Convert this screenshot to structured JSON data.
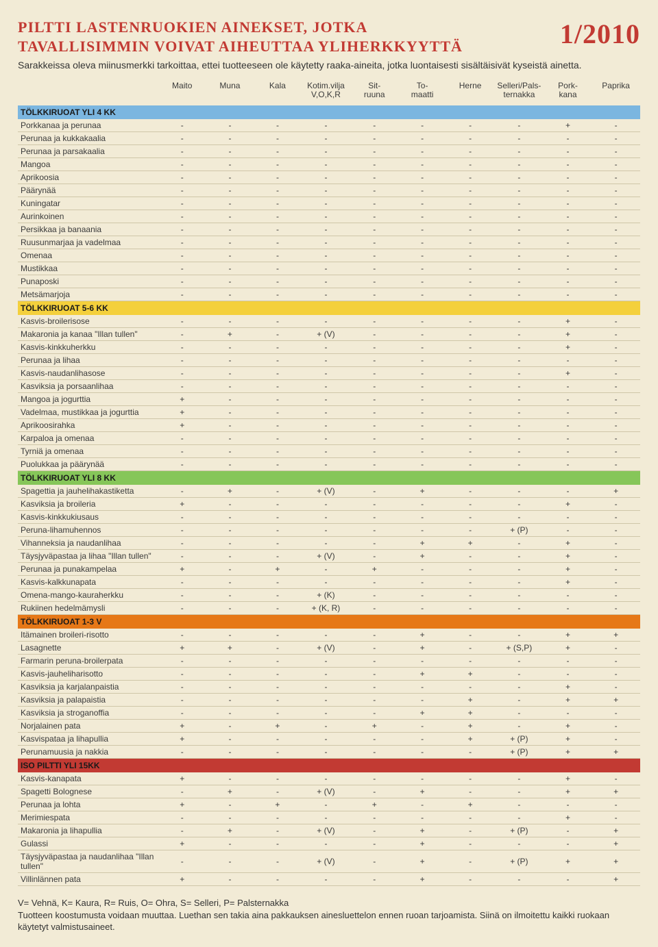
{
  "header": {
    "title_line1": "PILTTI LASTENRUOKIEN AINEKSET, JOTKA",
    "title_line2": "TAVALLISIMMIN VOIVAT AIHEUTTAA YLIHERKKYYTTÄ",
    "date": "1/2010",
    "subtitle": "Sarakkeissa oleva miinusmerkki tarkoittaa, ettei tuotteeseen ole käytetty raaka-aineita, jotka luontaisesti sisältäisivät kyseistä ainetta."
  },
  "columns": [
    "Maito",
    "Muna",
    "Kala",
    "Kotim.vilja\nV,O,K,R",
    "Sit-\nruuna",
    "To-\nmaatti",
    "Herne",
    "Selleri/Pals-\nternakka",
    "Pork-\nkana",
    "Paprika"
  ],
  "section_colors": {
    "s1": "#7bb6e0",
    "s2": "#f4d03c",
    "s3": "#86c659",
    "s4": "#e67817",
    "s5": "#c23a33"
  },
  "sections": [
    {
      "title": "TÖLKKIRUOAT YLI 4 KK",
      "color_key": "s1",
      "rows": [
        {
          "name": "Porkkanaa ja perunaa",
          "cells": [
            "-",
            "-",
            "-",
            "-",
            "-",
            "-",
            "-",
            "-",
            "+",
            "-"
          ]
        },
        {
          "name": "Perunaa ja kukkakaalia",
          "cells": [
            "-",
            "-",
            "-",
            "-",
            "-",
            "-",
            "-",
            "-",
            "-",
            "-"
          ]
        },
        {
          "name": "Perunaa ja parsakaalia",
          "cells": [
            "-",
            "-",
            "-",
            "-",
            "-",
            "-",
            "-",
            "-",
            "-",
            "-"
          ]
        },
        {
          "name": "Mangoa",
          "cells": [
            "-",
            "-",
            "-",
            "-",
            "-",
            "-",
            "-",
            "-",
            "-",
            "-"
          ]
        },
        {
          "name": "Aprikoosia",
          "cells": [
            "-",
            "-",
            "-",
            "-",
            "-",
            "-",
            "-",
            "-",
            "-",
            "-"
          ]
        },
        {
          "name": "Päärynää",
          "cells": [
            "-",
            "-",
            "-",
            "-",
            "-",
            "-",
            "-",
            "-",
            "-",
            "-"
          ]
        },
        {
          "name": "Kuningatar",
          "cells": [
            "-",
            "-",
            "-",
            "-",
            "-",
            "-",
            "-",
            "-",
            "-",
            "-"
          ]
        },
        {
          "name": "Aurinkoinen",
          "cells": [
            "-",
            "-",
            "-",
            "-",
            "-",
            "-",
            "-",
            "-",
            "-",
            "-"
          ]
        },
        {
          "name": "Persikkaa ja banaania",
          "cells": [
            "-",
            "-",
            "-",
            "-",
            "-",
            "-",
            "-",
            "-",
            "-",
            "-"
          ]
        },
        {
          "name": "Ruusunmarjaa ja vadelmaa",
          "cells": [
            "-",
            "-",
            "-",
            "-",
            "-",
            "-",
            "-",
            "-",
            "-",
            "-"
          ]
        },
        {
          "name": "Omenaa",
          "cells": [
            "-",
            "-",
            "-",
            "-",
            "-",
            "-",
            "-",
            "-",
            "-",
            "-"
          ]
        },
        {
          "name": "Mustikkaa",
          "cells": [
            "-",
            "-",
            "-",
            "-",
            "-",
            "-",
            "-",
            "-",
            "-",
            "-"
          ]
        },
        {
          "name": "Punaposki",
          "cells": [
            "-",
            "-",
            "-",
            "-",
            "-",
            "-",
            "-",
            "-",
            "-",
            "-"
          ]
        },
        {
          "name": "Metsämarjoja",
          "cells": [
            "-",
            "-",
            "-",
            "-",
            "-",
            "-",
            "-",
            "-",
            "-",
            "-"
          ]
        }
      ]
    },
    {
      "title": "TÖLKKIRUOAT 5-6 KK",
      "color_key": "s2",
      "rows": [
        {
          "name": "Kasvis-broilerisose",
          "cells": [
            "-",
            "-",
            "-",
            "-",
            "-",
            "-",
            "-",
            "-",
            "+",
            "-"
          ]
        },
        {
          "name": "Makaronia ja kanaa \"Illan tullen\"",
          "cells": [
            "-",
            "+",
            "-",
            "+ (V)",
            "-",
            "-",
            "-",
            "-",
            "+",
            "-"
          ]
        },
        {
          "name": "Kasvis-kinkkuherkku",
          "cells": [
            "-",
            "-",
            "-",
            "-",
            "-",
            "-",
            "-",
            "-",
            "+",
            "-"
          ]
        },
        {
          "name": "Perunaa ja lihaa",
          "cells": [
            "-",
            "-",
            "-",
            "-",
            "-",
            "-",
            "-",
            "-",
            "-",
            "-"
          ]
        },
        {
          "name": "Kasvis-naudanlihasose",
          "cells": [
            "-",
            "-",
            "-",
            "-",
            "-",
            "-",
            "-",
            "-",
            "+",
            "-"
          ]
        },
        {
          "name": "Kasviksia ja porsaanlihaa",
          "cells": [
            "-",
            "-",
            "-",
            "-",
            "-",
            "-",
            "-",
            "-",
            "-",
            "-"
          ]
        },
        {
          "name": "Mangoa ja jogurttia",
          "cells": [
            "+",
            "-",
            "-",
            "-",
            "-",
            "-",
            "-",
            "-",
            "-",
            "-"
          ]
        },
        {
          "name": "Vadelmaa, mustikkaa ja jogurttia",
          "cells": [
            "+",
            "-",
            "-",
            "-",
            "-",
            "-",
            "-",
            "-",
            "-",
            "-"
          ]
        },
        {
          "name": "Aprikoosirahka",
          "cells": [
            "+",
            "-",
            "-",
            "-",
            "-",
            "-",
            "-",
            "-",
            "-",
            "-"
          ]
        },
        {
          "name": "Karpaloa ja omenaa",
          "cells": [
            "-",
            "-",
            "-",
            "-",
            "-",
            "-",
            "-",
            "-",
            "-",
            "-"
          ]
        },
        {
          "name": "Tyrniä ja omenaa",
          "cells": [
            "-",
            "-",
            "-",
            "-",
            "-",
            "-",
            "-",
            "-",
            "-",
            "-"
          ]
        },
        {
          "name": "Puolukkaa ja päärynää",
          "cells": [
            "-",
            "-",
            "-",
            "-",
            "-",
            "-",
            "-",
            "-",
            "-",
            "-"
          ]
        }
      ]
    },
    {
      "title": "TÖLKKIRUOAT YLI 8 KK",
      "color_key": "s3",
      "rows": [
        {
          "name": "Spagettia ja jauhelihakastiketta",
          "cells": [
            "-",
            "+",
            "-",
            "+ (V)",
            "-",
            "+",
            "-",
            "-",
            "-",
            "+"
          ]
        },
        {
          "name": "Kasviksia ja broileria",
          "cells": [
            "+",
            "-",
            "-",
            "-",
            "-",
            "-",
            "-",
            "-",
            "+",
            "-"
          ]
        },
        {
          "name": "Kasvis-kinkkukiusaus",
          "cells": [
            "-",
            "-",
            "-",
            "-",
            "-",
            "-",
            "-",
            "-",
            "-",
            "-"
          ]
        },
        {
          "name": "Peruna-lihamuhennos",
          "cells": [
            "-",
            "-",
            "-",
            "-",
            "-",
            "-",
            "-",
            "+ (P)",
            "-",
            "-"
          ]
        },
        {
          "name": "Vihanneksia ja naudanlihaa",
          "cells": [
            "-",
            "-",
            "-",
            "-",
            "-",
            "+",
            "+",
            "-",
            "+",
            "-"
          ]
        },
        {
          "name": "Täysjyväpastaa ja lihaa \"Illan tullen\"",
          "cells": [
            "-",
            "-",
            "-",
            "+ (V)",
            "-",
            "+",
            "-",
            "-",
            "+",
            "-"
          ]
        },
        {
          "name": "Perunaa ja punakampelaa",
          "cells": [
            "+",
            "-",
            "+",
            "-",
            "+",
            "-",
            "-",
            "-",
            "+",
            "-"
          ]
        },
        {
          "name": "Kasvis-kalkkunapata",
          "cells": [
            "-",
            "-",
            "-",
            "-",
            "-",
            "-",
            "-",
            "-",
            "+",
            "-"
          ]
        },
        {
          "name": "Omena-mango-kauraherkku",
          "cells": [
            "-",
            "-",
            "-",
            "+ (K)",
            "-",
            "-",
            "-",
            "-",
            "-",
            "-"
          ]
        },
        {
          "name": "Rukiinen hedelmämysli",
          "cells": [
            "-",
            "-",
            "-",
            "+ (K, R)",
            "-",
            "-",
            "-",
            "-",
            "-",
            "-"
          ]
        }
      ]
    },
    {
      "title": "TÖLKKIRUOAT 1-3 V",
      "color_key": "s4",
      "rows": [
        {
          "name": "Itämainen broileri-risotto",
          "cells": [
            "-",
            "-",
            "-",
            "-",
            "-",
            "+",
            "-",
            "-",
            "+",
            "+"
          ]
        },
        {
          "name": "Lasagnette",
          "cells": [
            "+",
            "+",
            "-",
            "+ (V)",
            "-",
            "+",
            "-",
            "+ (S,P)",
            "+",
            "-"
          ]
        },
        {
          "name": "Farmarin peruna-broilerpata",
          "cells": [
            "-",
            "-",
            "-",
            "-",
            "-",
            "-",
            "-",
            "-",
            "-",
            "-"
          ]
        },
        {
          "name": "Kasvis-jauheliharisotto",
          "cells": [
            "-",
            "-",
            "-",
            "-",
            "-",
            "+",
            "+",
            "-",
            "-",
            "-"
          ]
        },
        {
          "name": "Kasviksia ja karjalanpaistia",
          "cells": [
            "-",
            "-",
            "-",
            "-",
            "-",
            "-",
            "-",
            "-",
            "+",
            "-"
          ]
        },
        {
          "name": "Kasviksia ja palapaistia",
          "cells": [
            "-",
            "-",
            "-",
            "-",
            "-",
            "-",
            "+",
            "-",
            "+",
            "+"
          ]
        },
        {
          "name": "Kasviksia ja stroganoffia",
          "cells": [
            "-",
            "-",
            "-",
            "-",
            "-",
            "+",
            "+",
            "-",
            "-",
            "-"
          ]
        },
        {
          "name": "Norjalainen pata",
          "cells": [
            "+",
            "-",
            "+",
            "-",
            "+",
            "-",
            "+",
            "-",
            "+",
            "-"
          ]
        },
        {
          "name": "Kasvispataa ja lihapullia",
          "cells": [
            "+",
            "-",
            "-",
            "-",
            "-",
            "-",
            "+",
            "+ (P)",
            "+",
            "-"
          ]
        },
        {
          "name": "Perunamuusia ja nakkia",
          "cells": [
            "-",
            "-",
            "-",
            "-",
            "-",
            "-",
            "-",
            "+ (P)",
            "+",
            "+"
          ]
        }
      ]
    },
    {
      "title": "ISO PILTTI YLI 15KK",
      "color_key": "s5",
      "rows": [
        {
          "name": "Kasvis-kanapata",
          "cells": [
            "+",
            "-",
            "-",
            "-",
            "-",
            "-",
            "-",
            "-",
            "+",
            "-"
          ]
        },
        {
          "name": "Spagetti Bolognese",
          "cells": [
            "-",
            "+",
            "-",
            "+ (V)",
            "-",
            "+",
            "-",
            "-",
            "+",
            "+"
          ]
        },
        {
          "name": "Perunaa ja lohta",
          "cells": [
            "+",
            "-",
            "+",
            "-",
            "+",
            "-",
            "+",
            "-",
            "-",
            "-"
          ]
        },
        {
          "name": "Merimiespata",
          "cells": [
            "-",
            "-",
            "-",
            "-",
            "-",
            "-",
            "-",
            "-",
            "+",
            "-"
          ]
        },
        {
          "name": "Makaronia ja lihapullia",
          "cells": [
            "-",
            "+",
            "-",
            "+ (V)",
            "-",
            "+",
            "-",
            "+ (P)",
            "-",
            "+"
          ]
        },
        {
          "name": "Gulassi",
          "cells": [
            "+",
            "-",
            "-",
            "-",
            "-",
            "+",
            "-",
            "-",
            "-",
            "+"
          ]
        },
        {
          "name": "Täysjyväpastaa ja naudanlihaa \"Illan tullen\"",
          "cells": [
            "-",
            "-",
            "-",
            "+ (V)",
            "-",
            "+",
            "-",
            "+ (P)",
            "+",
            "+"
          ]
        },
        {
          "name": "Villinlännen pata",
          "cells": [
            "+",
            "-",
            "-",
            "-",
            "-",
            "+",
            "-",
            "-",
            "-",
            "+"
          ]
        }
      ]
    }
  ],
  "legend": {
    "line1": "V= Vehnä, K= Kaura, R= Ruis, O= Ohra, S= Selleri, P= Palsternakka",
    "line2": "Tuotteen koostumusta voidaan muuttaa. Luethan sen takia aina pakkauksen ainesluettelon ennen ruoan tarjoamista. Siinä on ilmoitettu kaikki ruokaan käytetyt valmistusaineet."
  }
}
